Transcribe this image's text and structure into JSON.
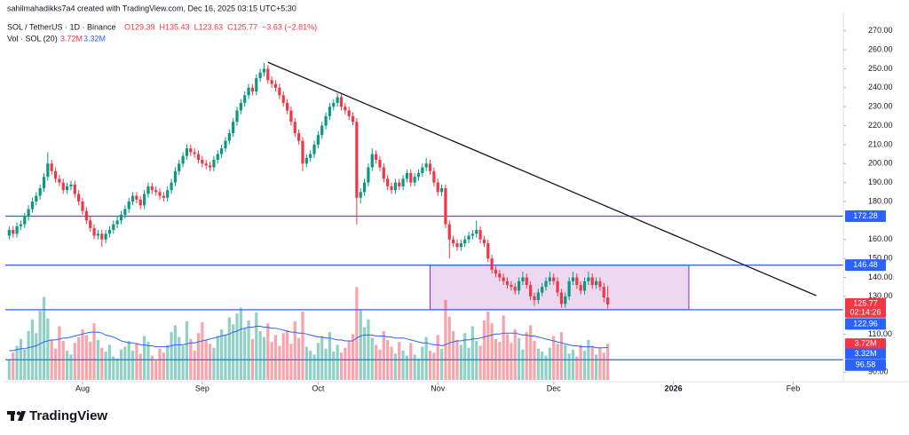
{
  "chart_data": {
    "type": "candlestick",
    "attribution": "sahilmahadikks7a4 created with TradingView.com, Dec 16, 2025 03:15 UTC+5:30",
    "symbol": "SOL / TetherUS · 1D · Binance",
    "ohlc_legend": [
      "O129.39",
      "H135.43",
      "L123.63",
      "C125.77",
      "−3.63 (−2.81%)"
    ],
    "volume_legend": "Vol · SOL (20)",
    "volume_label": "3.72M",
    "volume_sma_label": "3.32M",
    "countdown": "02:14:26",
    "brand": "TradingView",
    "up_color": "#089981",
    "down_color": "#f23645",
    "level_color": "#2962ff",
    "sma_color": "#2962ff",
    "box_fill": "#e1bee7",
    "box_stroke": "#9c27b0",
    "trend_color": "#131722",
    "xlim": [
      -1,
      216
    ],
    "ylim": [
      85,
      275
    ],
    "vlim": [
      0,
      10
    ],
    "xticks": [
      {
        "value": 19,
        "label": "Aug"
      },
      {
        "value": 50,
        "label": "Sep"
      },
      {
        "value": 80,
        "label": "Oct"
      },
      {
        "value": 111,
        "label": "Nov"
      },
      {
        "value": 141,
        "label": "Dec"
      },
      {
        "value": 172,
        "label": "2026"
      },
      {
        "value": 203,
        "label": "Feb"
      }
    ],
    "yticks": [
      {
        "value": 270,
        "label": "270.00"
      },
      {
        "value": 260,
        "label": "260.00"
      },
      {
        "value": 250,
        "label": "250.00"
      },
      {
        "value": 240,
        "label": "240.00"
      },
      {
        "value": 230,
        "label": "230.00"
      },
      {
        "value": 220,
        "label": "220.00"
      },
      {
        "value": 210,
        "label": "210.00"
      },
      {
        "value": 200,
        "label": "200.00"
      },
      {
        "value": 190,
        "label": "190.00"
      },
      {
        "value": 180,
        "label": "180.00"
      },
      {
        "value": 160,
        "label": "160.00"
      },
      {
        "value": 150,
        "label": "150.00"
      },
      {
        "value": 140,
        "label": "140.00"
      },
      {
        "value": 130,
        "label": "130.00"
      },
      {
        "value": 110,
        "label": "110.00"
      },
      {
        "value": 90,
        "label": "90.00"
      }
    ],
    "levels": [
      172.28,
      146.48,
      122.96,
      96.58
    ],
    "last_price": 125.77,
    "trendline": {
      "x": [
        67,
        209
      ],
      "y": [
        253.4,
        130.4
      ]
    },
    "range_box": {
      "x": [
        109,
        176
      ],
      "y": [
        122.96,
        146.48
      ]
    },
    "open": [
      162,
      165,
      163,
      167,
      168,
      172,
      176,
      180,
      183,
      187,
      193,
      200,
      196,
      192,
      190,
      186,
      188,
      189,
      184,
      180,
      175,
      170,
      166,
      162,
      163,
      160,
      163,
      165,
      168,
      170,
      173,
      176,
      180,
      183,
      181,
      178,
      184,
      188,
      186,
      185,
      183,
      182,
      186,
      190,
      196,
      200,
      204,
      208,
      206,
      205,
      202,
      200,
      199,
      198,
      202,
      205,
      208,
      212,
      216,
      222,
      228,
      232,
      236,
      240,
      238,
      245,
      248,
      250,
      244,
      242,
      240,
      236,
      232,
      228,
      222,
      216,
      212,
      200,
      203,
      205,
      210,
      215,
      220,
      225,
      230,
      232,
      235,
      230,
      228,
      225,
      222,
      182,
      185,
      190,
      198,
      205,
      202,
      198,
      192,
      188,
      186,
      190,
      188,
      192,
      195,
      190,
      193,
      195,
      198,
      200,
      196,
      190,
      185,
      187,
      168,
      160,
      158,
      156,
      158,
      160,
      162,
      163,
      165,
      160,
      158,
      150,
      144,
      142,
      140,
      138,
      136,
      135,
      133,
      138,
      140,
      136,
      130,
      128,
      132,
      135,
      138,
      140,
      138,
      132,
      126,
      130,
      138,
      140,
      136,
      133,
      138,
      140,
      136,
      138,
      135,
      129.39
    ],
    "high": [
      167,
      167,
      169,
      170,
      174,
      178,
      182,
      185,
      189,
      195,
      206,
      202,
      198,
      194,
      192,
      190,
      191,
      191,
      186,
      182,
      177,
      172,
      168,
      165,
      165,
      165,
      167,
      170,
      172,
      175,
      178,
      182,
      185,
      185,
      183,
      186,
      190,
      190,
      188,
      187,
      185,
      188,
      192,
      198,
      202,
      206,
      210,
      210,
      208,
      207,
      204,
      202,
      201,
      204,
      207,
      210,
      214,
      218,
      224,
      230,
      234,
      238,
      242,
      242,
      247,
      250,
      253,
      252,
      246,
      244,
      242,
      238,
      234,
      230,
      224,
      218,
      214,
      205,
      207,
      212,
      217,
      222,
      227,
      232,
      234,
      237,
      237,
      232,
      230,
      227,
      224,
      187,
      192,
      200,
      208,
      207,
      204,
      200,
      194,
      190,
      192,
      192,
      194,
      197,
      197,
      195,
      197,
      200,
      203,
      202,
      198,
      192,
      189,
      189,
      170,
      162,
      160,
      160,
      162,
      164,
      165,
      170,
      167,
      162,
      160,
      152,
      146,
      144,
      142,
      140,
      138,
      137,
      140,
      143,
      142,
      138,
      132,
      134,
      137,
      140,
      143,
      142,
      140,
      134,
      132,
      140,
      143,
      142,
      138,
      140,
      143,
      142,
      140,
      140,
      137,
      135.43
    ],
    "low": [
      160,
      161,
      161,
      165,
      166,
      170,
      174,
      178,
      181,
      185,
      191,
      194,
      190,
      188,
      184,
      184,
      186,
      182,
      178,
      173,
      168,
      164,
      160,
      160,
      156,
      158,
      161,
      163,
      166,
      168,
      171,
      174,
      178,
      179,
      176,
      176,
      182,
      184,
      183,
      181,
      180,
      180,
      184,
      188,
      194,
      198,
      202,
      204,
      203,
      200,
      198,
      197,
      196,
      196,
      200,
      203,
      206,
      210,
      214,
      220,
      226,
      230,
      234,
      236,
      236,
      243,
      246,
      242,
      240,
      238,
      234,
      230,
      226,
      220,
      214,
      210,
      196,
      198,
      201,
      203,
      208,
      213,
      218,
      223,
      228,
      230,
      228,
      226,
      223,
      220,
      168,
      179,
      183,
      188,
      196,
      200,
      196,
      190,
      186,
      184,
      184,
      186,
      186,
      190,
      188,
      188,
      191,
      193,
      196,
      194,
      188,
      183,
      183,
      166,
      150,
      156,
      154,
      154,
      156,
      158,
      160,
      161,
      158,
      156,
      148,
      142,
      140,
      138,
      136,
      134,
      133,
      131,
      131,
      136,
      134,
      128,
      125,
      126,
      130,
      133,
      136,
      136,
      130,
      124,
      124,
      128,
      136,
      134,
      131,
      131,
      136,
      134,
      134,
      133,
      127,
      123.63
    ],
    "close": [
      165,
      163,
      167,
      168,
      172,
      176,
      180,
      183,
      187,
      193,
      200,
      196,
      192,
      190,
      186,
      188,
      189,
      184,
      180,
      175,
      170,
      166,
      162,
      163,
      160,
      163,
      165,
      168,
      170,
      173,
      176,
      180,
      183,
      181,
      178,
      184,
      188,
      186,
      185,
      183,
      182,
      186,
      190,
      196,
      200,
      204,
      208,
      206,
      205,
      202,
      200,
      199,
      198,
      202,
      205,
      208,
      212,
      216,
      222,
      228,
      232,
      236,
      240,
      238,
      245,
      248,
      250,
      244,
      242,
      240,
      236,
      232,
      228,
      222,
      216,
      212,
      200,
      203,
      205,
      210,
      215,
      220,
      225,
      230,
      232,
      235,
      230,
      228,
      225,
      222,
      182,
      185,
      190,
      198,
      205,
      202,
      198,
      192,
      188,
      186,
      190,
      188,
      192,
      195,
      190,
      193,
      195,
      198,
      200,
      196,
      190,
      185,
      187,
      168,
      160,
      158,
      156,
      158,
      160,
      162,
      163,
      165,
      160,
      158,
      150,
      144,
      142,
      140,
      138,
      136,
      135,
      133,
      138,
      140,
      136,
      130,
      128,
      132,
      135,
      138,
      140,
      138,
      132,
      126,
      130,
      138,
      140,
      136,
      133,
      138,
      140,
      136,
      138,
      135,
      129.39,
      125.77
    ],
    "volume": [
      2.1,
      2.8,
      3.5,
      4.2,
      3.1,
      5.0,
      6.2,
      4.8,
      7.1,
      8.5,
      6.3,
      4.1,
      3.2,
      5.5,
      4.0,
      3.0,
      2.6,
      3.8,
      4.4,
      5.2,
      4.6,
      3.9,
      5.8,
      4.1,
      3.3,
      2.9,
      3.6,
      2.4,
      2.2,
      3.1,
      3.4,
      4.0,
      3.0,
      3.8,
      2.7,
      4.5,
      3.9,
      2.5,
      2.0,
      3.2,
      2.8,
      3.6,
      4.9,
      5.6,
      4.4,
      3.5,
      6.0,
      4.2,
      3.0,
      4.8,
      5.9,
      4.1,
      3.7,
      3.3,
      4.5,
      5.2,
      4.6,
      6.4,
      5.7,
      6.8,
      7.4,
      5.3,
      6.1,
      4.2,
      6.9,
      5.0,
      4.4,
      5.8,
      3.9,
      4.6,
      3.5,
      4.8,
      5.1,
      3.7,
      6.0,
      4.3,
      7.0,
      3.4,
      3.0,
      2.6,
      3.8,
      4.5,
      3.2,
      4.9,
      2.9,
      3.6,
      2.8,
      3.3,
      4.0,
      4.7,
      9.5,
      7.2,
      5.4,
      6.2,
      4.3,
      3.6,
      3.1,
      5.0,
      4.1,
      3.4,
      2.7,
      3.9,
      3.0,
      2.5,
      3.8,
      2.6,
      2.2,
      3.4,
      4.4,
      3.0,
      2.8,
      4.6,
      3.2,
      8.2,
      6.5,
      5.0,
      4.1,
      3.6,
      4.8,
      3.3,
      5.5,
      4.0,
      3.5,
      6.1,
      7.0,
      5.8,
      4.2,
      3.9,
      6.6,
      4.7,
      3.8,
      5.2,
      4.3,
      3.1,
      4.9,
      5.6,
      4.0,
      3.2,
      2.9,
      2.5,
      3.3,
      4.5,
      3.7,
      4.9,
      3.6,
      2.7,
      3.1,
      2.4,
      3.6,
      3.0,
      4.1,
      3.5,
      2.6,
      3.3,
      2.8,
      3.72
    ],
    "volume_sma": [
      3.0,
      3.0,
      3.1,
      3.2,
      3.2,
      3.3,
      3.4,
      3.5,
      3.7,
      3.9,
      4.0,
      4.1,
      4.1,
      4.2,
      4.3,
      4.3,
      4.4,
      4.5,
      4.6,
      4.7,
      4.8,
      4.9,
      4.9,
      4.9,
      4.8,
      4.6,
      4.5,
      4.4,
      4.2,
      4.0,
      3.9,
      3.8,
      3.8,
      3.7,
      3.6,
      3.6,
      3.5,
      3.5,
      3.4,
      3.4,
      3.4,
      3.4,
      3.5,
      3.6,
      3.6,
      3.6,
      3.7,
      3.8,
      3.8,
      3.9,
      4.0,
      4.1,
      4.2,
      4.3,
      4.4,
      4.5,
      4.6,
      4.7,
      4.9,
      5.0,
      5.2,
      5.3,
      5.4,
      5.4,
      5.5,
      5.5,
      5.4,
      5.4,
      5.3,
      5.3,
      5.2,
      5.1,
      5.0,
      4.9,
      4.9,
      4.8,
      4.8,
      4.7,
      4.6,
      4.5,
      4.4,
      4.4,
      4.3,
      4.3,
      4.2,
      4.1,
      4.1,
      4.0,
      4.0,
      4.0,
      4.3,
      4.5,
      4.6,
      4.6,
      4.6,
      4.5,
      4.5,
      4.5,
      4.4,
      4.4,
      4.3,
      4.3,
      4.3,
      4.2,
      4.1,
      4.0,
      3.9,
      3.8,
      3.8,
      3.7,
      3.6,
      3.6,
      3.5,
      3.6,
      3.8,
      3.9,
      4.0,
      4.0,
      4.1,
      4.1,
      4.2,
      4.2,
      4.3,
      4.4,
      4.5,
      4.6,
      4.7,
      4.7,
      4.8,
      4.8,
      4.8,
      4.8,
      4.7,
      4.6,
      4.6,
      4.5,
      4.5,
      4.4,
      4.3,
      4.2,
      4.1,
      4.0,
      3.9,
      3.8,
      3.7,
      3.6,
      3.5,
      3.5,
      3.4,
      3.4,
      3.4,
      3.4,
      3.3,
      3.3,
      3.3,
      3.32
    ]
  }
}
